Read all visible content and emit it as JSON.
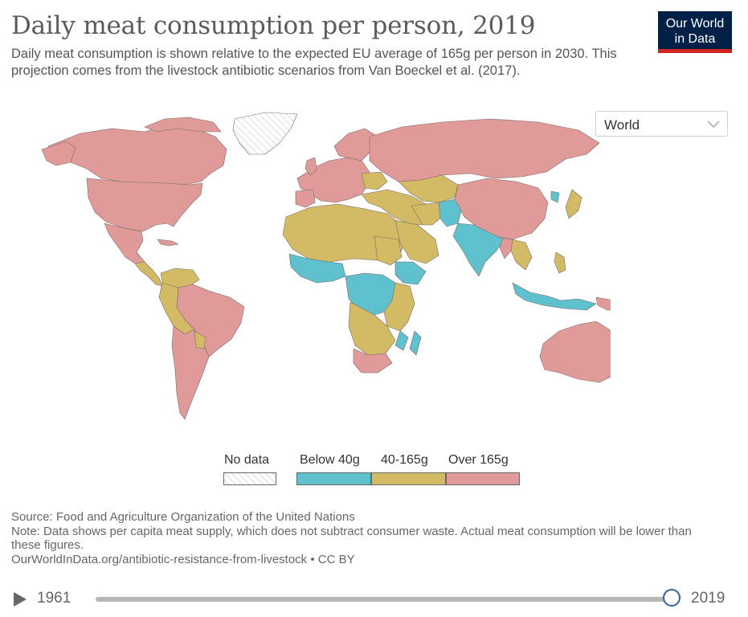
{
  "title": "Daily meat consumption per person, 2019",
  "subtitle": "Daily meat consumption is shown relative to the expected EU average of 165g per person in 2030. This projection comes from the livestock antibiotic scenarios from Van Boeckel et al. (2017).",
  "logo": {
    "line1": "Our World",
    "line2": "in Data"
  },
  "region_selector": {
    "value": "World"
  },
  "map": {
    "colors": {
      "below40": "#5ec1cd",
      "mid": "#d3bb66",
      "over165": "#e09a98",
      "nodata": "#ffffff",
      "border": "#7a6a6a"
    }
  },
  "legend": {
    "nodata_label": "No data",
    "categories": [
      {
        "label": "Below 40g",
        "color": "#5ec1cd"
      },
      {
        "label": "40-165g",
        "color": "#d3bb66"
      },
      {
        "label": "Over 165g",
        "color": "#e09a98"
      }
    ]
  },
  "footer": {
    "source": "Source: Food and Agriculture Organization of the United Nations",
    "note": "Note: Data shows per capita meat supply, which does not subtract consumer waste. Actual meat consumption will be lower than these figures.",
    "url": "OurWorldInData.org/antibiotic-resistance-from-livestock • CC BY"
  },
  "timeline": {
    "start_year": "1961",
    "end_year": "2019",
    "position_fraction": 1.0
  }
}
